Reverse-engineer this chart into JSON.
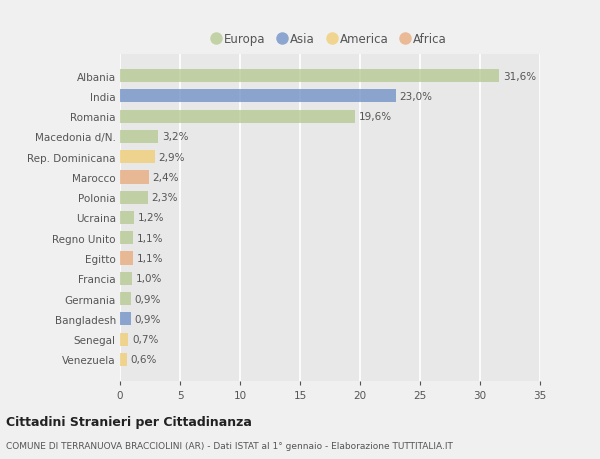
{
  "countries": [
    "Albania",
    "India",
    "Romania",
    "Macedonia d/N.",
    "Rep. Dominicana",
    "Marocco",
    "Polonia",
    "Ucraina",
    "Regno Unito",
    "Egitto",
    "Francia",
    "Germania",
    "Bangladesh",
    "Senegal",
    "Venezuela"
  ],
  "values": [
    31.6,
    23.0,
    19.6,
    3.2,
    2.9,
    2.4,
    2.3,
    1.2,
    1.1,
    1.1,
    1.0,
    0.9,
    0.9,
    0.7,
    0.6
  ],
  "labels": [
    "31,6%",
    "23,0%",
    "19,6%",
    "3,2%",
    "2,9%",
    "2,4%",
    "2,3%",
    "1,2%",
    "1,1%",
    "1,1%",
    "1,0%",
    "0,9%",
    "0,9%",
    "0,7%",
    "0,6%"
  ],
  "colors": [
    "#b5c98e",
    "#6b8dc4",
    "#b5c98e",
    "#b5c98e",
    "#f0cc70",
    "#e8a878",
    "#b5c98e",
    "#b5c98e",
    "#b5c98e",
    "#e8a878",
    "#b5c98e",
    "#b5c98e",
    "#6b8dc4",
    "#f0cc70",
    "#f0cc70"
  ],
  "legend_labels": [
    "Europa",
    "Asia",
    "America",
    "Africa"
  ],
  "legend_colors": [
    "#b5c98e",
    "#6b8dc4",
    "#f0cc70",
    "#e8a878"
  ],
  "title": "Cittadini Stranieri per Cittadinanza",
  "subtitle": "COMUNE DI TERRANUOVA BRACCIOLINI (AR) - Dati ISTAT al 1° gennaio - Elaborazione TUTTITALIA.IT",
  "xlim": [
    0,
    35
  ],
  "xticks": [
    0,
    5,
    10,
    15,
    20,
    25,
    30,
    35
  ],
  "background_color": "#f0f0f0",
  "plot_bg_color": "#e8e8e8",
  "grid_color": "#ffffff",
  "bar_alpha": 0.75
}
